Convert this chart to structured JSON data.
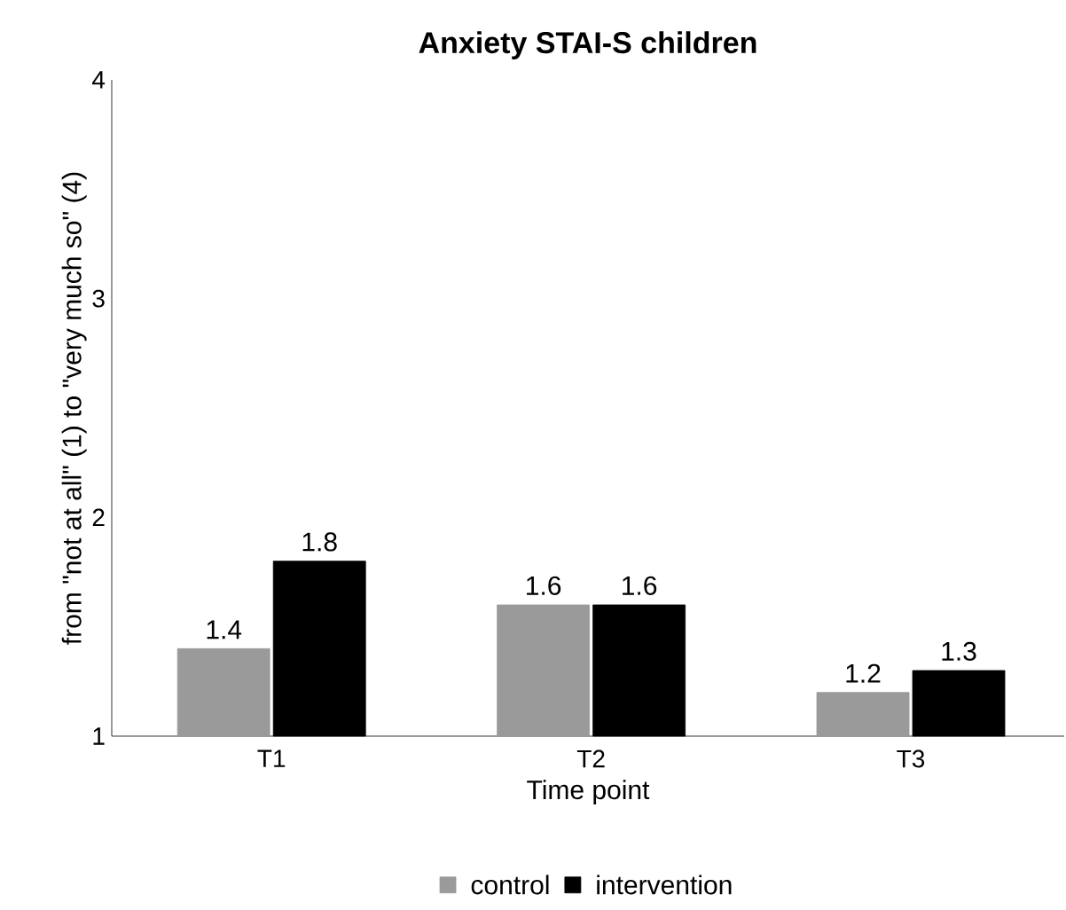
{
  "chart_data": {
    "type": "bar",
    "title": "Anxiety STAI-S children",
    "xlabel": "Time point",
    "ylabel": "from \"not at all\" (1) to \"very much so\" (4)",
    "categories": [
      "T1",
      "T2",
      "T3"
    ],
    "series": [
      {
        "name": "control",
        "color": "#9a9a9a",
        "values": [
          1.4,
          1.6,
          1.2
        ]
      },
      {
        "name": "intervention",
        "color": "#000000",
        "values": [
          1.8,
          1.6,
          1.3
        ]
      }
    ],
    "ylim": [
      1,
      4
    ],
    "yticks": [
      1,
      2,
      3,
      4
    ],
    "data_labels": true,
    "legend": "bottom",
    "grid": false
  }
}
